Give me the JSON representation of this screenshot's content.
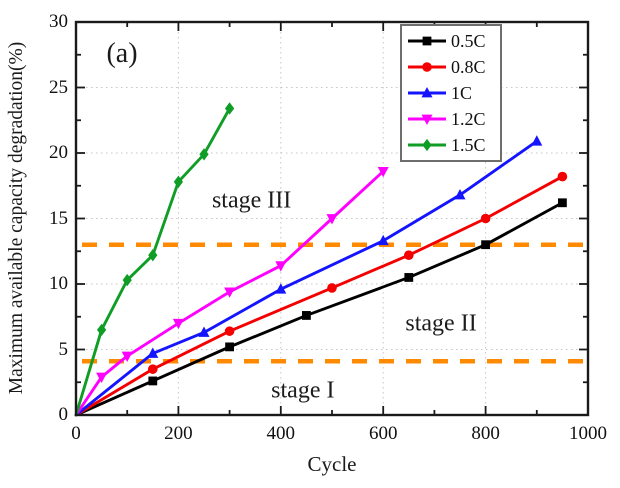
{
  "panel_label": "(a)",
  "chart_data": {
    "type": "line",
    "title": "",
    "xlabel": "Cycle",
    "ylabel": "Maximum available capacity degradation(%)",
    "xlim": [
      0,
      1000
    ],
    "ylim": [
      0,
      30
    ],
    "x_ticks": [
      0,
      200,
      400,
      600,
      800,
      1000
    ],
    "y_ticks": [
      0,
      5,
      10,
      15,
      20,
      25,
      30
    ],
    "x_minor_step": 100,
    "y_minor_step": 2.5,
    "grid": "dotted-major",
    "legend_position": "top-right",
    "series": [
      {
        "name": "0.5C",
        "color": "#000000",
        "marker": "square",
        "points": [
          [
            0,
            0
          ],
          [
            150,
            2.6
          ],
          [
            300,
            5.2
          ],
          [
            450,
            7.6
          ],
          [
            650,
            10.5
          ],
          [
            800,
            13.0
          ],
          [
            950,
            16.2
          ]
        ]
      },
      {
        "name": "0.8C",
        "color": "#f40000",
        "marker": "circle",
        "points": [
          [
            0,
            0
          ],
          [
            150,
            3.5
          ],
          [
            300,
            6.4
          ],
          [
            500,
            9.7
          ],
          [
            650,
            12.2
          ],
          [
            800,
            15.0
          ],
          [
            950,
            18.2
          ]
        ]
      },
      {
        "name": "1C",
        "color": "#1414ff",
        "marker": "triangle-up",
        "points": [
          [
            0,
            0
          ],
          [
            150,
            4.7
          ],
          [
            250,
            6.3
          ],
          [
            400,
            9.6
          ],
          [
            600,
            13.3
          ],
          [
            750,
            16.8
          ],
          [
            900,
            20.9
          ]
        ]
      },
      {
        "name": "1.2C",
        "color": "#ff00ff",
        "marker": "triangle-down",
        "points": [
          [
            0,
            0
          ],
          [
            50,
            2.9
          ],
          [
            100,
            4.5
          ],
          [
            200,
            7.0
          ],
          [
            300,
            9.4
          ],
          [
            400,
            11.4
          ],
          [
            500,
            15.0
          ],
          [
            600,
            18.6
          ]
        ]
      },
      {
        "name": "1.5C",
        "color": "#0f9d26",
        "marker": "diamond",
        "points": [
          [
            0,
            0
          ],
          [
            50,
            6.5
          ],
          [
            100,
            10.3
          ],
          [
            150,
            12.2
          ],
          [
            200,
            17.8
          ],
          [
            250,
            19.9
          ],
          [
            300,
            23.4
          ]
        ]
      }
    ],
    "reference_lines": [
      {
        "y": 13.0,
        "color": "#ff8a00",
        "style": "dashed"
      },
      {
        "y": 4.1,
        "color": "#ff8a00",
        "style": "dashed"
      }
    ],
    "annotations": [
      {
        "text": "stage III",
        "x": 343,
        "y": 16.3
      },
      {
        "text": "stage II",
        "x": 713,
        "y": 6.95
      },
      {
        "text": "stage I",
        "x": 443,
        "y": 1.8
      }
    ]
  }
}
